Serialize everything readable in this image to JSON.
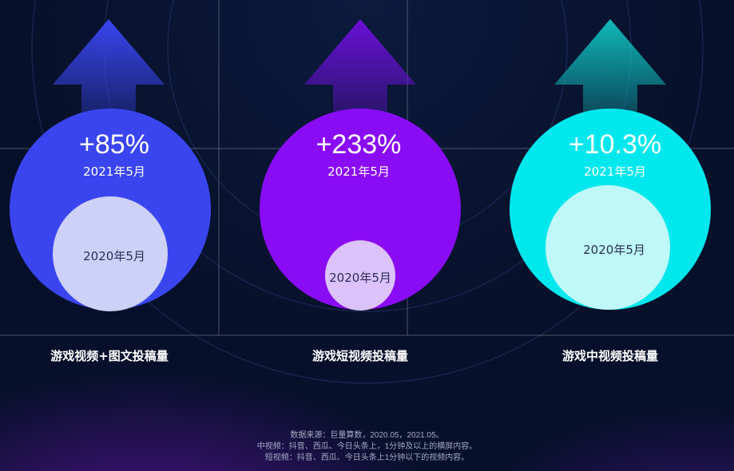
{
  "chart_data": {
    "type": "bubble-comparison",
    "panels": [
      {
        "category": "游戏视频+图文投稿量",
        "growth_label": "+85%",
        "outer_label": "2021年5月",
        "inner_label": "2020年5月",
        "color": "#3a45f0",
        "inner_color": "#cdd0f7",
        "arrow_color": "#3a45f0"
      },
      {
        "category": "游戏短视频投稿量",
        "growth_label": "+233%",
        "outer_label": "2021年5月",
        "inner_label": "2020年5月",
        "color": "#8a0cf5",
        "inner_color": "#dcc2fb",
        "arrow_color": "#6a10d8"
      },
      {
        "category": "游戏中视频投稿量",
        "growth_label": "+10.3%",
        "outer_label": "2021年5月",
        "inner_label": "2020年5月",
        "color": "#00e8ee",
        "inner_color": "#bff8f8",
        "arrow_color": "#10b9b9"
      }
    ]
  },
  "footer": {
    "line1": "数据来源：巨量算数，2020.05，2021.05。",
    "line2": "中视频：抖音、西瓜、今日头条上，1分钟及以上的横屏内容。",
    "line3": "短视频：抖音、西瓜、今日头条上1分钟以下的视频内容。"
  }
}
